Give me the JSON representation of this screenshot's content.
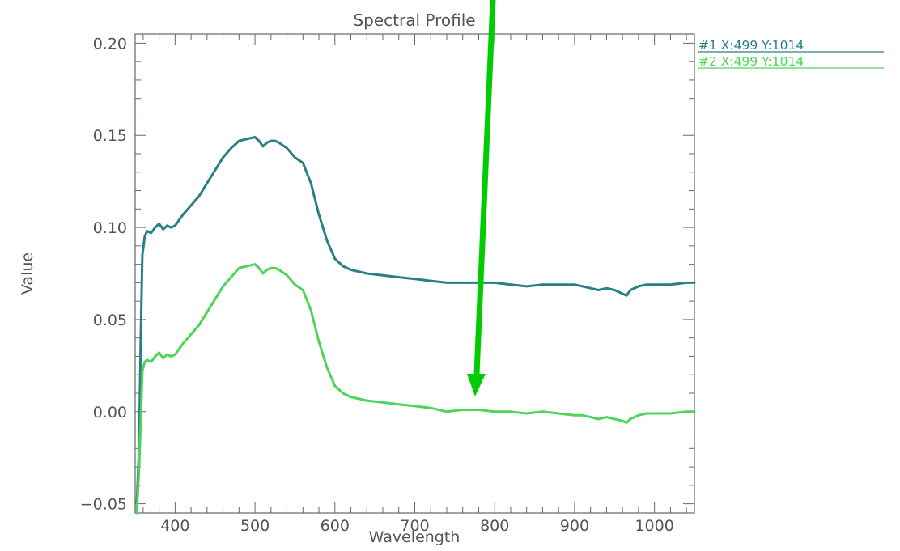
{
  "chart_data": {
    "type": "line",
    "title": "Spectral Profile",
    "xlabel": "Wavelength",
    "ylabel": "Value",
    "xlim": [
      350,
      1050
    ],
    "ylim": [
      -0.055,
      0.205
    ],
    "xticks": [
      400,
      500,
      600,
      700,
      800,
      900,
      1000
    ],
    "xtick_labels": [
      "400",
      "500",
      "600",
      "700",
      "800",
      "900",
      "1000"
    ],
    "yticks": [
      -0.05,
      0,
      0.05,
      0.1,
      0.15,
      0.2
    ],
    "ytick_labels": [
      "−0.05",
      "0.00",
      "0.05",
      "0.10",
      "0.15",
      "0.20"
    ],
    "legend_position": "top-right-outside",
    "series": [
      {
        "name": "#1 X:499 Y:1014",
        "color": "#2a7f86",
        "x": [
          352,
          355,
          357,
          359,
          362,
          365,
          370,
          375,
          380,
          385,
          390,
          395,
          400,
          410,
          420,
          430,
          440,
          450,
          460,
          470,
          480,
          490,
          500,
          505,
          510,
          515,
          520,
          525,
          530,
          540,
          550,
          560,
          570,
          580,
          590,
          600,
          610,
          620,
          640,
          660,
          680,
          700,
          720,
          740,
          760,
          780,
          800,
          820,
          840,
          860,
          880,
          900,
          910,
          920,
          930,
          940,
          950,
          960,
          965,
          970,
          980,
          990,
          1000,
          1020,
          1040,
          1050
        ],
        "y": [
          -0.05,
          -0.02,
          0.04,
          0.085,
          0.095,
          0.098,
          0.097,
          0.1,
          0.102,
          0.099,
          0.101,
          0.1,
          0.101,
          0.107,
          0.112,
          0.117,
          0.124,
          0.131,
          0.138,
          0.143,
          0.147,
          0.148,
          0.149,
          0.147,
          0.144,
          0.146,
          0.147,
          0.147,
          0.146,
          0.143,
          0.138,
          0.135,
          0.124,
          0.107,
          0.093,
          0.083,
          0.079,
          0.077,
          0.075,
          0.074,
          0.073,
          0.072,
          0.071,
          0.07,
          0.07,
          0.07,
          0.07,
          0.069,
          0.068,
          0.069,
          0.069,
          0.069,
          0.068,
          0.067,
          0.066,
          0.067,
          0.066,
          0.064,
          0.063,
          0.066,
          0.068,
          0.069,
          0.069,
          0.069,
          0.07,
          0.07
        ]
      },
      {
        "name": "#2 X:499 Y:1014",
        "color": "#4fd45a",
        "x": [
          352,
          355,
          357,
          359,
          362,
          365,
          370,
          375,
          380,
          385,
          390,
          395,
          400,
          410,
          420,
          430,
          440,
          450,
          460,
          470,
          480,
          490,
          500,
          505,
          510,
          515,
          520,
          525,
          530,
          540,
          550,
          560,
          570,
          580,
          590,
          600,
          610,
          620,
          640,
          660,
          680,
          700,
          720,
          740,
          760,
          780,
          800,
          820,
          840,
          860,
          880,
          900,
          910,
          920,
          930,
          940,
          950,
          960,
          965,
          970,
          980,
          990,
          1000,
          1020,
          1040,
          1050
        ],
        "y": [
          -0.055,
          -0.03,
          -0.005,
          0.022,
          0.027,
          0.028,
          0.027,
          0.03,
          0.032,
          0.029,
          0.031,
          0.03,
          0.031,
          0.037,
          0.042,
          0.047,
          0.054,
          0.061,
          0.068,
          0.073,
          0.078,
          0.079,
          0.08,
          0.078,
          0.075,
          0.077,
          0.078,
          0.078,
          0.077,
          0.074,
          0.069,
          0.066,
          0.055,
          0.038,
          0.024,
          0.014,
          0.01,
          0.008,
          0.006,
          0.005,
          0.004,
          0.003,
          0.002,
          0.0,
          0.001,
          0.001,
          0.0,
          0.0,
          -0.001,
          0.0,
          -0.001,
          -0.002,
          -0.002,
          -0.003,
          -0.004,
          -0.003,
          -0.004,
          -0.005,
          -0.006,
          -0.004,
          -0.002,
          -0.001,
          -0.001,
          -0.001,
          0.0,
          0.0
        ]
      }
    ]
  },
  "overlay": {
    "arrow_color": "#00cc00"
  }
}
